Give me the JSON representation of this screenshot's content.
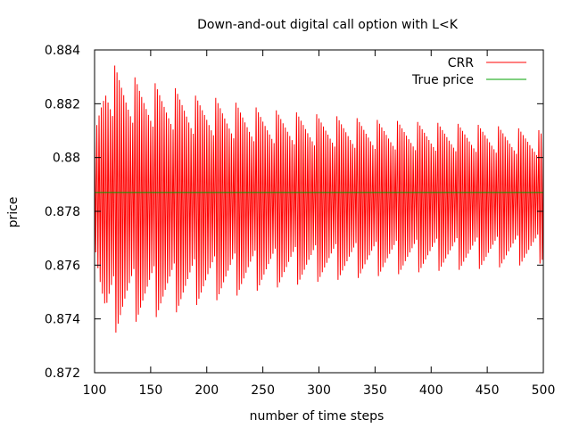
{
  "chart_data": {
    "type": "line",
    "title": "Down-and-out digital call option with L<K",
    "xlabel": "number of time steps",
    "ylabel": "price",
    "xlim": [
      100,
      500
    ],
    "ylim": [
      0.872,
      0.884
    ],
    "xticks": [
      100,
      150,
      200,
      250,
      300,
      350,
      400,
      450,
      500
    ],
    "yticks": [
      0.872,
      0.874,
      0.876,
      0.878,
      0.88,
      0.882,
      0.884
    ],
    "ytick_labels": [
      "0.872",
      "0.874",
      "0.876",
      "0.878",
      "0.88",
      "0.882",
      "0.884"
    ],
    "grid": false,
    "legend_position": "top-right",
    "true_price": 0.8787,
    "envelope_samples": {
      "x": [
        100,
        110,
        120,
        130,
        140,
        150,
        160,
        170,
        180,
        190,
        200,
        250,
        300,
        350,
        400,
        450,
        500
      ],
      "high": [
        0.8808,
        0.8835,
        0.8834,
        0.8831,
        0.8829,
        0.8828,
        0.8827,
        0.8826,
        0.8825,
        0.8823,
        0.8823,
        0.8818,
        0.8816,
        0.8814,
        0.8813,
        0.8812,
        0.881
      ],
      "low": [
        0.8768,
        0.873,
        0.8734,
        0.8737,
        0.8738,
        0.8739,
        0.874,
        0.8741,
        0.8742,
        0.8744,
        0.8745,
        0.875,
        0.8753,
        0.8755,
        0.8757,
        0.8758,
        0.876
      ]
    },
    "series": [
      {
        "name": "CRR",
        "color": "#ff0000"
      },
      {
        "name": "True price",
        "color": "#00a000"
      }
    ]
  }
}
